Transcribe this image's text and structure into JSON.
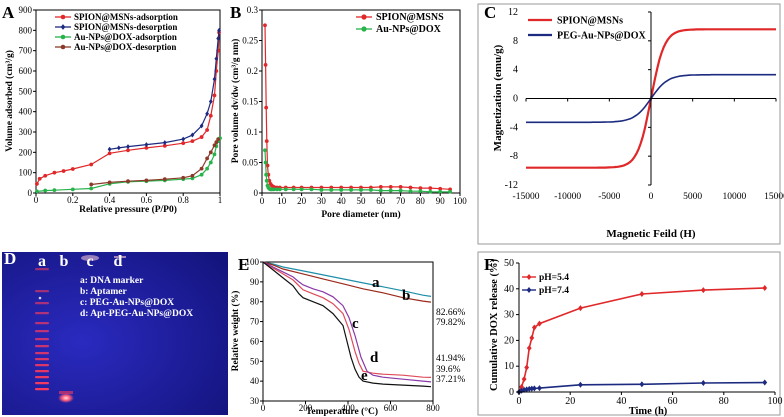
{
  "figure": {
    "panel_labels": [
      "A",
      "B",
      "C",
      "D",
      "E",
      "F"
    ]
  },
  "chart_data": [
    {
      "id": "A",
      "type": "line",
      "xlabel": "Relative pressure (P/P0)",
      "ylabel": "Volume adsorbed (cm³/g)",
      "xlim": [
        0,
        1
      ],
      "ylim": [
        0,
        900
      ],
      "xticks": [
        "0",
        "0.2",
        "0.4",
        "0.6",
        "0.8",
        "1"
      ],
      "yticks": [
        "0",
        "100",
        "200",
        "300",
        "400",
        "500",
        "600",
        "700",
        "800",
        "900"
      ],
      "series": [
        {
          "name": "SPION@MSNs-adsorption",
          "color": "#e0282a",
          "marker": "circle",
          "x": [
            0.005,
            0.02,
            0.05,
            0.1,
            0.15,
            0.2,
            0.3,
            0.4,
            0.5,
            0.6,
            0.7,
            0.8,
            0.85,
            0.9,
            0.93,
            0.95,
            0.97,
            0.98,
            0.99,
            0.995
          ],
          "y": [
            45,
            70,
            85,
            100,
            108,
            118,
            140,
            195,
            210,
            222,
            232,
            245,
            255,
            275,
            310,
            380,
            480,
            600,
            700,
            790
          ]
        },
        {
          "name": "SPION@MSNs-desorption",
          "color": "#1c2a80",
          "marker": "diamond",
          "x": [
            0.995,
            0.99,
            0.98,
            0.97,
            0.95,
            0.93,
            0.9,
            0.85,
            0.8,
            0.7,
            0.6,
            0.5,
            0.45,
            0.4
          ],
          "y": [
            800,
            760,
            660,
            560,
            450,
            390,
            330,
            285,
            265,
            248,
            238,
            228,
            222,
            215
          ]
        },
        {
          "name": "Au-NPs@DOX-adsorption",
          "color": "#27b24a",
          "marker": "circle",
          "x": [
            0.005,
            0.05,
            0.1,
            0.2,
            0.3,
            0.4,
            0.5,
            0.6,
            0.7,
            0.8,
            0.85,
            0.9,
            0.93,
            0.95,
            0.97,
            0.98,
            0.99,
            1.0
          ],
          "y": [
            8,
            12,
            14,
            18,
            22,
            45,
            55,
            58,
            62,
            68,
            72,
            90,
            120,
            150,
            190,
            230,
            255,
            270
          ]
        },
        {
          "name": "Au-NPs@DOX-desorption",
          "color": "#8b3a2a",
          "marker": "circle",
          "x": [
            0.99,
            0.98,
            0.97,
            0.95,
            0.93,
            0.9,
            0.85,
            0.8,
            0.7,
            0.6,
            0.5,
            0.4,
            0.3
          ],
          "y": [
            265,
            250,
            235,
            200,
            170,
            120,
            85,
            75,
            68,
            62,
            58,
            52,
            42
          ]
        }
      ]
    },
    {
      "id": "B",
      "type": "line",
      "xlabel": "Pore diameter (nm)",
      "ylabel": "Pore volume dv/dw (cm³/g nm)",
      "xlim": [
        0,
        100
      ],
      "ylim": [
        0,
        0.3
      ],
      "xticks": [
        "0",
        "10",
        "20",
        "30",
        "40",
        "50",
        "60",
        "70",
        "80",
        "90",
        "100"
      ],
      "yticks": [
        "0",
        "0.05",
        "0.1",
        "0.15",
        "0.2",
        "0.25",
        "0.3"
      ],
      "series": [
        {
          "name": "SPION@MSNS",
          "color": "#e0282a",
          "marker": "circle",
          "x": [
            1.5,
            1.8,
            2.1,
            2.4,
            2.8,
            3.2,
            3.7,
            4.3,
            5,
            6,
            7.5,
            9,
            12,
            16,
            20,
            25,
            30,
            35,
            40,
            45,
            50,
            55,
            60,
            65,
            70,
            75,
            80,
            85,
            90,
            95
          ],
          "y": [
            0.275,
            0.21,
            0.14,
            0.085,
            0.045,
            0.03,
            0.02,
            0.015,
            0.012,
            0.01,
            0.009,
            0.009,
            0.009,
            0.009,
            0.009,
            0.009,
            0.009,
            0.009,
            0.009,
            0.009,
            0.009,
            0.009,
            0.01,
            0.01,
            0.01,
            0.009,
            0.008,
            0.008,
            0.007,
            0.006
          ]
        },
        {
          "name": "Au-NPs@DOX",
          "color": "#27b24a",
          "marker": "circle",
          "x": [
            1.5,
            1.8,
            2.1,
            2.4,
            2.8,
            3.2,
            3.7,
            4.3,
            5,
            6,
            7.5,
            9,
            12,
            16,
            20,
            25,
            30,
            35,
            40,
            45,
            50,
            55,
            60,
            65,
            70,
            75,
            80,
            85,
            90,
            95
          ],
          "y": [
            0.07,
            0.05,
            0.03,
            0.02,
            0.012,
            0.009,
            0.007,
            0.006,
            0.006,
            0.006,
            0.006,
            0.006,
            0.006,
            0.006,
            0.006,
            0.006,
            0.005,
            0.005,
            0.005,
            0.005,
            0.005,
            0.005,
            0.004,
            0.004,
            0.004,
            0.003,
            0.003,
            0.002,
            0.002,
            0.002
          ]
        }
      ]
    },
    {
      "id": "C",
      "type": "line",
      "xlabel": "Magnetic Feild (H)",
      "ylabel": "Magnetization (emu/g)",
      "xlim": [
        -15000,
        15000
      ],
      "ylim": [
        -12,
        12
      ],
      "xticks": [
        "-15000",
        "-10000",
        "-5000",
        "0",
        "5000",
        "10000",
        "15000"
      ],
      "yticks": [
        "-12",
        "-8",
        "-4",
        "0",
        "4",
        "8",
        "12"
      ],
      "series": [
        {
          "name": "SPION@MSNs",
          "color": "#e0282a",
          "ms": 9.6,
          "k": 1600
        },
        {
          "name": "PEG-Au-NPs@DOX",
          "color": "#1c2a80",
          "ms": 3.3,
          "k": 2000
        }
      ]
    },
    {
      "id": "E",
      "type": "line",
      "xlabel": "Temperature (°C)",
      "ylabel": "Relative weight (%)",
      "xlim": [
        0,
        850
      ],
      "ylim": [
        30,
        100
      ],
      "xticks": [
        "0",
        "200",
        "400",
        "600",
        "800"
      ],
      "yticks": [
        "30",
        "40",
        "50",
        "60",
        "70",
        "80",
        "90",
        "100"
      ],
      "curve_labels": [
        "a",
        "b",
        "c",
        "d",
        "e"
      ],
      "end_values": [
        "82.66%",
        "79.82%",
        "41.94%",
        "39.6%",
        "37.21%"
      ],
      "series": [
        {
          "name": "a",
          "color": "#1f8ea8",
          "x": [
            0,
            50,
            100,
            200,
            300,
            400,
            500,
            600,
            700,
            800,
            840
          ],
          "y": [
            100,
            99,
            97.5,
            95.5,
            93.5,
            91.5,
            89.5,
            87.5,
            85.5,
            83.3,
            82.7
          ]
        },
        {
          "name": "b",
          "color": "#9b2a1c",
          "x": [
            0,
            50,
            100,
            200,
            300,
            400,
            500,
            600,
            700,
            800,
            840
          ],
          "y": [
            100,
            98.5,
            96.5,
            94,
            91.5,
            89,
            86.5,
            84.5,
            82,
            80.3,
            79.8
          ]
        },
        {
          "name": "c",
          "color": "#e04a5a",
          "x": [
            0,
            50,
            100,
            150,
            180,
            200,
            250,
            300,
            350,
            400,
            430,
            460,
            480,
            500,
            550,
            600,
            700,
            800,
            840
          ],
          "y": [
            100,
            97,
            94,
            91,
            88,
            86,
            84,
            82,
            79,
            74,
            66,
            55,
            49,
            45,
            44,
            43.5,
            43,
            42,
            41.9
          ]
        },
        {
          "name": "d",
          "color": "#8a3aa6",
          "x": [
            0,
            50,
            100,
            150,
            180,
            200,
            250,
            300,
            350,
            400,
            430,
            460,
            490,
            520,
            550,
            600,
            700,
            800,
            840
          ],
          "y": [
            100,
            97.5,
            95,
            92.5,
            90,
            88.5,
            86.5,
            85,
            82.5,
            78,
            72,
            63,
            52,
            45,
            43,
            42,
            41,
            40,
            39.6
          ]
        },
        {
          "name": "e",
          "color": "#111111",
          "x": [
            0,
            50,
            100,
            150,
            180,
            200,
            250,
            300,
            350,
            400,
            420,
            440,
            460,
            480,
            500,
            550,
            600,
            700,
            800,
            840
          ],
          "y": [
            100,
            96,
            92,
            88,
            84,
            82,
            80,
            78,
            74,
            68,
            60,
            52,
            46,
            42,
            40,
            39,
            38.5,
            38,
            37.5,
            37.2
          ]
        }
      ]
    },
    {
      "id": "F",
      "type": "line",
      "xlabel": "Time (h)",
      "ylabel": "Cumulative DOX release (%)",
      "xlim": [
        0,
        100
      ],
      "ylim": [
        0,
        50
      ],
      "xticks": [
        "0",
        "20",
        "40",
        "60",
        "80",
        "100"
      ],
      "yticks": [
        "0",
        "10",
        "20",
        "30",
        "40",
        "50"
      ],
      "series": [
        {
          "name": "pH=5.4",
          "color": "#e0282a",
          "marker": "diamond",
          "x": [
            0,
            1,
            2,
            3,
            4,
            5,
            6,
            8,
            24,
            48,
            72,
            96
          ],
          "y": [
            0,
            2,
            5,
            9.5,
            17,
            21,
            25,
            26.5,
            32.5,
            38,
            39.5,
            40.3
          ]
        },
        {
          "name": "pH=7.4",
          "color": "#1c2a80",
          "marker": "diamond",
          "x": [
            0,
            1,
            2,
            3,
            4,
            5,
            6,
            8,
            24,
            48,
            72,
            96
          ],
          "y": [
            0,
            0.5,
            0.8,
            1,
            1.2,
            1.3,
            1.4,
            1.5,
            2.8,
            3,
            3.5,
            3.7
          ]
        }
      ]
    }
  ],
  "gel": {
    "lane_labels": [
      "a",
      "b",
      "c",
      "d"
    ],
    "legend": [
      "a: DNA marker",
      "b: Aptamer",
      "c: PEG-Au-NPs@DOX",
      "d: Apt-PEG-Au-NPs@DOX"
    ],
    "colors": {
      "background": "#1e1ea8",
      "band": "#ff3a5a",
      "glow": "#ffd0d8"
    }
  }
}
